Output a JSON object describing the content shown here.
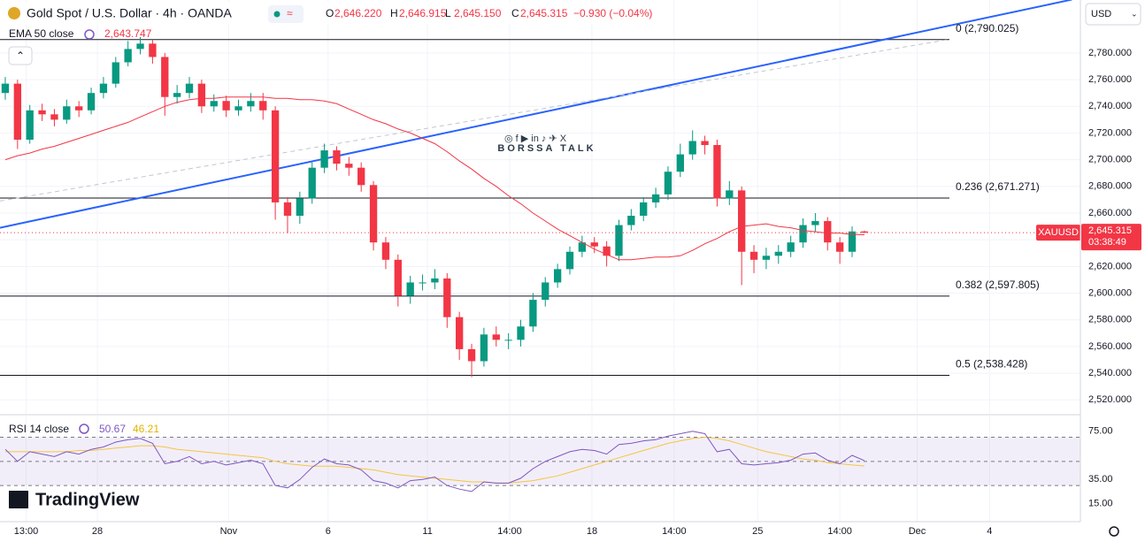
{
  "header": {
    "symbol": "Gold Spot / U.S. Dollar · 4h · OANDA",
    "ohlc": [
      {
        "label": "O",
        "value": "2,646.220"
      },
      {
        "label": "H",
        "value": "2,646.915"
      },
      {
        "label": "L",
        "value": "2,645.150"
      },
      {
        "label": "C",
        "value": "2,645.315"
      }
    ],
    "change": "−0.930 (−0.04%)",
    "currency": "USD"
  },
  "branding": {
    "logo": "TradingView",
    "watermark": "BORSSA TALK"
  },
  "chart_data": {
    "type": "candlestick",
    "open": [
      2750,
      2757,
      2715,
      2737,
      2734,
      2730,
      2740,
      2737,
      2750,
      2757,
      2773,
      2783,
      2787,
      2777,
      2747,
      2750,
      2757,
      2740,
      2744,
      2737,
      2740,
      2744,
      2737,
      2668,
      2658,
      2671,
      2694,
      2707,
      2697,
      2694,
      2681,
      2638,
      2625,
      2598,
      2608,
      2608,
      2611,
      2582,
      2558,
      2549,
      2569,
      2565,
      2565,
      2575,
      2595,
      2608,
      2618,
      2631,
      2638,
      2635,
      2628,
      2651,
      2658,
      2668,
      2674,
      2691,
      2704,
      2714,
      2711,
      2671,
      2677,
      2631,
      2625,
      2628,
      2631,
      2638,
      2651,
      2654,
      2638,
      2631,
      2646.22
    ],
    "high": [
      2762,
      2760,
      2741,
      2742,
      2738,
      2745,
      2744,
      2754,
      2762,
      2777,
      2789,
      2792,
      2790,
      2780,
      2756,
      2762,
      2760,
      2749,
      2748,
      2745,
      2750,
      2750,
      2740,
      2672,
      2676,
      2698,
      2712,
      2710,
      2702,
      2698,
      2684,
      2642,
      2629,
      2613,
      2614,
      2618,
      2615,
      2586,
      2562,
      2574,
      2575,
      2570,
      2580,
      2600,
      2612,
      2622,
      2635,
      2643,
      2642,
      2639,
      2655,
      2663,
      2672,
      2679,
      2695,
      2712,
      2722,
      2718,
      2715,
      2684,
      2680,
      2636,
      2634,
      2636,
      2643,
      2656,
      2660,
      2657,
      2642,
      2650,
      2646.915
    ],
    "low": [
      2745,
      2708,
      2712,
      2729,
      2725,
      2727,
      2732,
      2734,
      2746,
      2754,
      2770,
      2779,
      2772,
      2733,
      2742,
      2746,
      2735,
      2736,
      2732,
      2733,
      2736,
      2730,
      2655,
      2645,
      2652,
      2667,
      2690,
      2692,
      2688,
      2676,
      2632,
      2618,
      2590,
      2592,
      2602,
      2603,
      2574,
      2550,
      2537,
      2545,
      2560,
      2558,
      2560,
      2571,
      2590,
      2604,
      2614,
      2627,
      2630,
      2620,
      2624,
      2647,
      2654,
      2664,
      2670,
      2687,
      2700,
      2704,
      2665,
      2666,
      2606,
      2615,
      2618,
      2622,
      2627,
      2634,
      2646,
      2632,
      2622,
      2627,
      2645.15
    ],
    "close": [
      2757,
      2715,
      2737,
      2734,
      2730,
      2740,
      2737,
      2750,
      2757,
      2773,
      2783,
      2787,
      2777,
      2747,
      2750,
      2757,
      2740,
      2744,
      2737,
      2740,
      2744,
      2737,
      2668,
      2658,
      2671,
      2694,
      2707,
      2697,
      2694,
      2681,
      2638,
      2625,
      2598,
      2608,
      2608,
      2611,
      2582,
      2558,
      2549,
      2569,
      2565,
      2565,
      2575,
      2595,
      2608,
      2618,
      2631,
      2638,
      2635,
      2628,
      2651,
      2658,
      2668,
      2674,
      2691,
      2704,
      2714,
      2711,
      2671,
      2677,
      2631,
      2625,
      2628,
      2631,
      2638,
      2651,
      2654,
      2638,
      2631,
      2646.22,
      2645.315
    ],
    "colors": {
      "up": "#089981",
      "down": "#f23645"
    },
    "xlim": [
      -0.43,
      87.6
    ],
    "xticks": [
      {
        "value": 1.7,
        "label": "13:00"
      },
      {
        "value": 7.5,
        "label": "28"
      },
      {
        "value": 18.2,
        "label": "Nov"
      },
      {
        "value": 26.3,
        "label": "6"
      },
      {
        "value": 34.4,
        "label": "11"
      },
      {
        "value": 41.1,
        "label": "14:00"
      },
      {
        "value": 47.8,
        "label": "18"
      },
      {
        "value": 54.5,
        "label": "14:00"
      },
      {
        "value": 61.3,
        "label": "25"
      },
      {
        "value": 68,
        "label": "14:00"
      },
      {
        "value": 74.3,
        "label": "Dec"
      },
      {
        "value": 80.2,
        "label": "4"
      }
    ],
    "ylim": [
      2508.9,
      2819.7
    ],
    "yticks": [
      {
        "value": 2520,
        "label": "2,520.000"
      },
      {
        "value": 2540,
        "label": "2,540.000"
      },
      {
        "value": 2560,
        "label": "2,560.000"
      },
      {
        "value": 2580,
        "label": "2,580.000"
      },
      {
        "value": 2600,
        "label": "2,600.000"
      },
      {
        "value": 2620,
        "label": "2,620.000"
      },
      {
        "value": 2640,
        "label": "2,640.000"
      },
      {
        "value": 2660,
        "label": "2,660.000"
      },
      {
        "value": 2680,
        "label": "2,680.000"
      },
      {
        "value": 2700,
        "label": "2,700.000"
      },
      {
        "value": 2720,
        "label": "2,720.000"
      },
      {
        "value": 2740,
        "label": "2,740.000"
      },
      {
        "value": 2760,
        "label": "2,760.000"
      },
      {
        "value": 2780,
        "label": "2,780.000"
      }
    ],
    "series": [
      {
        "name": "EMA 50 close",
        "color": "#f23645",
        "last_label": "2,643.747",
        "values": [
          2700,
          2703,
          2705,
          2708,
          2710,
          2713,
          2716,
          2719,
          2722,
          2725,
          2728,
          2732,
          2736,
          2740,
          2743,
          2745,
          2746,
          2746,
          2747,
          2747,
          2747,
          2747,
          2746,
          2746,
          2745,
          2745,
          2744,
          2742,
          2738,
          2734,
          2730,
          2727,
          2723,
          2720,
          2716,
          2712,
          2706,
          2699,
          2693,
          2686,
          2680,
          2673,
          2667,
          2660,
          2654,
          2648,
          2643,
          2638,
          2633,
          2629,
          2625,
          2625,
          2626,
          2627,
          2627,
          2628,
          2632,
          2637,
          2641,
          2646,
          2650,
          2651,
          2652,
          2650,
          2649,
          2647,
          2646,
          2645,
          2645,
          2644,
          2643.747
        ]
      }
    ],
    "fib_levels": [
      {
        "value": 2790.025,
        "label": "0 (2,790.025)"
      },
      {
        "value": 2671.271,
        "label": "0.236 (2,671.271)"
      },
      {
        "value": 2597.805,
        "label": "0.382 (2,597.805)"
      },
      {
        "value": 2538.428,
        "label": "0.5 (2,538.428)"
      }
    ],
    "trendlines": [
      {
        "color": "#2962ff",
        "x": [
          -0.43,
          86.9
        ],
        "y": [
          2649,
          2820
        ]
      },
      {
        "color": "#c3c6ce",
        "dashed": true,
        "x": [
          -0.43,
          76.8
        ],
        "y": [
          2669,
          2790
        ]
      }
    ],
    "last_price": {
      "value": 2645.315,
      "label": "2,645.315",
      "symbol": "XAUUSD",
      "countdown": "03:38:49",
      "color": "#f23645"
    },
    "rsi": {
      "name": "RSI 14 close",
      "color": "#7e57c2",
      "last_label": "50.67",
      "values": [
        60,
        50,
        58,
        56,
        54,
        58,
        56,
        60,
        62,
        66,
        68,
        69,
        65,
        48,
        50,
        54,
        48,
        50,
        47,
        49,
        51,
        48,
        30,
        28,
        35,
        45,
        52,
        48,
        47,
        43,
        34,
        32,
        28,
        34,
        35,
        37,
        30,
        27,
        25,
        33,
        32,
        32,
        36,
        44,
        50,
        54,
        58,
        60,
        59,
        56,
        64,
        65,
        67,
        68,
        71,
        73,
        75,
        73,
        58,
        60,
        48,
        47,
        48,
        49,
        51,
        56,
        57,
        51,
        48,
        55,
        50.67
      ],
      "ma": {
        "color": "#f5c542",
        "last_label": "46.21",
        "values": [
          58,
          58,
          58,
          58,
          58,
          58,
          59,
          59,
          60,
          61,
          62,
          63,
          63,
          62,
          60,
          59,
          58,
          57,
          56,
          55,
          54,
          53,
          50,
          48,
          47,
          46,
          46,
          46,
          45,
          44,
          43,
          41,
          39,
          38,
          37,
          36,
          35,
          34,
          33,
          33,
          32,
          32,
          33,
          34,
          36,
          38,
          41,
          44,
          47,
          50,
          53,
          56,
          59,
          62,
          65,
          67,
          69,
          70,
          69,
          67,
          64,
          61,
          58,
          56,
          54,
          52,
          51,
          49,
          48,
          47,
          46.21
        ]
      },
      "ylim": [
        0,
        88
      ],
      "yticks": [
        {
          "value": 15,
          "label": "15.00"
        },
        {
          "value": 35,
          "label": "35.00"
        },
        {
          "value": 75,
          "label": "75.00"
        }
      ],
      "levels": [
        30,
        50,
        70
      ]
    }
  }
}
